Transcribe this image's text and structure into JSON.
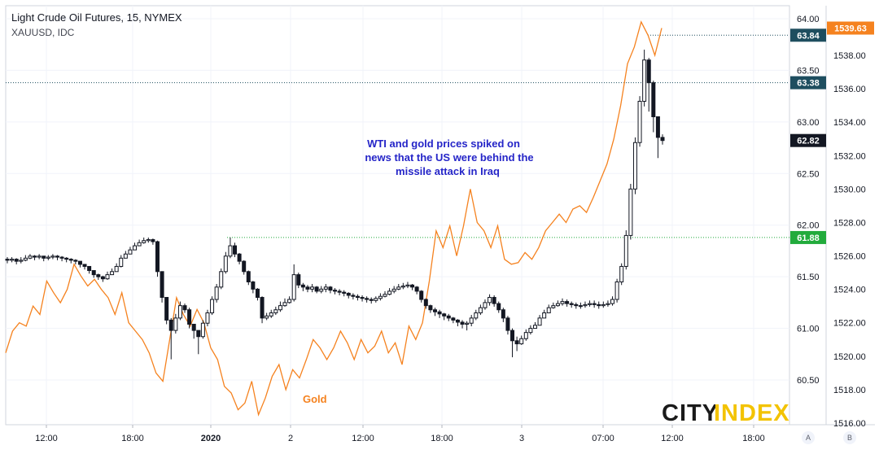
{
  "header": {
    "title": "Light Crude Oil Futures, 15, NYMEX",
    "subtitle": "XAUUSD, IDC"
  },
  "annotation": {
    "lines": [
      "WTI and gold prices spiked on",
      "news that the US were behind the",
      "missile attack in Iraq"
    ]
  },
  "logo": {
    "part1": "CITY",
    "part2": "INDEX"
  },
  "buttons": {
    "auto": "A",
    "log": "B"
  },
  "colors": {
    "oil": "#131722",
    "gold": "#f5821f",
    "note": "#2525c8",
    "level_dark": "#1e4e5f",
    "level_green": "#22ab3c",
    "price_black": "#131722"
  },
  "chart_data": {
    "type": "line",
    "title": "Light Crude Oil Futures, 15, NYMEX",
    "x_ticks": [
      "12:00",
      "18:00",
      "2020",
      "2",
      "12:00",
      "18:00",
      "3",
      "07:00",
      "12:00",
      "18:00"
    ],
    "y_left_ticks": [
      "64.00",
      "63.50",
      "63.00",
      "62.50",
      "62.00",
      "61.50",
      "61.00",
      "60.50"
    ],
    "y_left_range": [
      60.2,
      64.1
    ],
    "y_right_ticks": [
      "1538.00",
      "1536.00",
      "1534.00",
      "1532.00",
      "1530.00",
      "1528.00",
      "1526.00",
      "1524.00",
      "1522.00",
      "1520.00",
      "1518.00",
      "1516.00"
    ],
    "y_right_range": [
      1515.8,
      1540.2
    ],
    "levels": [
      {
        "label": "63.84",
        "value": 63.84,
        "style": "dark"
      },
      {
        "label": "63.38",
        "value": 63.38,
        "style": "dark"
      },
      {
        "label": "61.88",
        "value": 61.88,
        "style": "green"
      }
    ],
    "last_price_label": "62.82",
    "last_price": 62.82,
    "gold_last_label": "1539.63",
    "gold_last": 1539.63,
    "series": [
      {
        "name": "Light Crude Oil Futures",
        "kind": "candlestick",
        "close": [
          61.66,
          61.67,
          61.65,
          61.66,
          61.68,
          61.7,
          61.69,
          61.7,
          61.68,
          61.69,
          61.7,
          61.69,
          61.68,
          61.67,
          61.66,
          61.65,
          61.62,
          61.6,
          61.56,
          61.52,
          61.5,
          61.48,
          61.52,
          61.55,
          61.6,
          61.68,
          61.72,
          61.76,
          61.8,
          61.83,
          61.85,
          61.86,
          61.84,
          61.55,
          61.3,
          61.08,
          60.98,
          61.1,
          61.22,
          61.18,
          61.04,
          60.98,
          60.92,
          61.05,
          61.15,
          61.28,
          61.4,
          61.55,
          61.7,
          61.8,
          61.72,
          61.65,
          61.55,
          61.45,
          61.38,
          61.3,
          61.1,
          61.12,
          61.15,
          61.18,
          61.22,
          61.25,
          61.28,
          61.52,
          61.42,
          61.4,
          61.38,
          61.4,
          61.36,
          61.38,
          61.4,
          61.37,
          61.36,
          61.35,
          61.34,
          61.32,
          61.31,
          61.3,
          61.29,
          61.28,
          61.27,
          61.29,
          61.31,
          61.33,
          61.36,
          61.38,
          61.4,
          61.41,
          61.42,
          61.4,
          61.36,
          61.28,
          61.22,
          61.18,
          61.16,
          61.14,
          61.12,
          61.1,
          61.08,
          61.06,
          61.04,
          61.05,
          61.1,
          61.15,
          61.2,
          61.25,
          61.3,
          61.24,
          61.18,
          61.1,
          60.98,
          60.88,
          60.85,
          60.9,
          60.96,
          61.0,
          61.03,
          61.1,
          61.15,
          61.2,
          61.22,
          61.24,
          61.26,
          61.24,
          61.23,
          61.22,
          61.22,
          61.23,
          61.24,
          61.23,
          61.22,
          61.23,
          61.24,
          61.28,
          61.45,
          61.6,
          61.9,
          62.35,
          62.8,
          63.2,
          63.6,
          63.38,
          63.05,
          62.85,
          62.82
        ],
        "high": [
          61.69,
          61.69,
          61.68,
          61.69,
          61.71,
          61.72,
          61.71,
          61.72,
          61.7,
          61.71,
          61.72,
          61.71,
          61.7,
          61.69,
          61.68,
          61.67,
          61.64,
          61.62,
          61.58,
          61.55,
          61.53,
          61.51,
          61.55,
          61.58,
          61.63,
          61.71,
          61.75,
          61.79,
          61.83,
          61.86,
          61.88,
          61.88,
          61.87,
          61.85,
          61.55,
          61.3,
          61.1,
          61.14,
          61.26,
          61.24,
          61.2,
          61.04,
          60.98,
          61.08,
          61.18,
          61.31,
          61.43,
          61.58,
          61.74,
          61.88,
          61.83,
          61.73,
          61.66,
          61.56,
          61.46,
          61.39,
          61.31,
          61.15,
          61.18,
          61.21,
          61.26,
          61.29,
          61.31,
          61.62,
          61.54,
          61.44,
          61.42,
          61.43,
          61.41,
          61.41,
          61.43,
          61.41,
          61.39,
          61.38,
          61.37,
          61.35,
          61.34,
          61.33,
          61.32,
          61.31,
          61.3,
          61.31,
          61.34,
          61.36,
          61.39,
          61.41,
          61.43,
          61.44,
          61.45,
          61.43,
          61.41,
          61.37,
          61.29,
          61.23,
          61.2,
          61.18,
          61.15,
          61.14,
          61.11,
          61.09,
          61.08,
          61.07,
          61.13,
          61.18,
          61.23,
          61.28,
          61.33,
          61.32,
          61.26,
          61.2,
          61.12,
          61.0,
          60.92,
          60.93,
          60.99,
          61.03,
          61.06,
          61.13,
          61.18,
          61.23,
          61.25,
          61.27,
          61.29,
          61.28,
          61.26,
          61.25,
          61.25,
          61.26,
          61.27,
          61.27,
          61.26,
          61.26,
          61.27,
          61.31,
          61.48,
          61.63,
          61.95,
          62.4,
          62.85,
          63.25,
          63.7,
          63.62,
          63.4,
          63.05,
          62.88
        ],
        "low": [
          61.63,
          61.64,
          61.62,
          61.63,
          61.65,
          61.67,
          61.66,
          61.67,
          61.65,
          61.66,
          61.67,
          61.66,
          61.65,
          61.64,
          61.63,
          61.62,
          61.59,
          61.57,
          61.53,
          61.49,
          61.47,
          61.45,
          61.47,
          61.52,
          61.57,
          61.59,
          61.68,
          61.72,
          61.76,
          61.8,
          61.82,
          61.83,
          61.81,
          61.5,
          61.25,
          61.04,
          60.7,
          60.95,
          61.08,
          61.15,
          61.0,
          60.9,
          60.75,
          60.9,
          61.02,
          61.13,
          61.25,
          61.38,
          61.53,
          61.68,
          61.69,
          61.62,
          61.52,
          61.42,
          61.34,
          61.27,
          61.05,
          61.08,
          61.1,
          61.13,
          61.16,
          61.21,
          61.24,
          61.26,
          61.39,
          61.36,
          61.35,
          61.35,
          61.34,
          61.34,
          61.35,
          61.34,
          61.33,
          61.32,
          61.31,
          61.29,
          61.28,
          61.27,
          61.26,
          61.25,
          61.24,
          61.25,
          61.27,
          61.3,
          61.32,
          61.34,
          61.37,
          61.38,
          61.39,
          61.37,
          61.33,
          61.25,
          61.19,
          61.15,
          61.12,
          61.1,
          61.08,
          61.07,
          61.05,
          61.02,
          61.0,
          60.98,
          61.02,
          61.08,
          61.13,
          61.18,
          61.22,
          61.21,
          61.15,
          61.06,
          60.94,
          60.72,
          60.78,
          60.84,
          60.88,
          60.94,
          61.0,
          61.05,
          61.12,
          61.17,
          61.19,
          61.21,
          61.22,
          61.21,
          61.2,
          61.19,
          61.19,
          61.2,
          61.21,
          61.2,
          61.19,
          61.2,
          61.21,
          61.22,
          61.25,
          61.42,
          61.57,
          61.86,
          62.3,
          62.76,
          63.15,
          63.1,
          62.9,
          62.65,
          62.78
        ]
      },
      {
        "name": "Gold",
        "kind": "line",
        "values": [
          1520.2,
          1521.5,
          1522.0,
          1521.8,
          1523.0,
          1522.5,
          1524.5,
          1523.8,
          1523.2,
          1524.0,
          1525.5,
          1524.8,
          1524.2,
          1524.6,
          1524.0,
          1523.5,
          1522.5,
          1523.8,
          1522.0,
          1521.5,
          1521.0,
          1520.2,
          1519.0,
          1518.5,
          1521.0,
          1523.5,
          1522.5,
          1521.8,
          1522.8,
          1522.0,
          1520.5,
          1519.8,
          1518.2,
          1517.8,
          1516.8,
          1517.2,
          1518.5,
          1516.5,
          1517.5,
          1518.8,
          1519.5,
          1518.0,
          1519.2,
          1518.7,
          1519.8,
          1521.0,
          1520.5,
          1519.8,
          1520.5,
          1521.5,
          1520.8,
          1519.8,
          1521.0,
          1520.2,
          1520.6,
          1521.5,
          1520.2,
          1520.8,
          1519.5,
          1521.8,
          1521.0,
          1522.0,
          1524.5,
          1527.5,
          1526.5,
          1527.8,
          1526.0,
          1527.8,
          1530.0,
          1528.0,
          1527.5,
          1526.5,
          1527.8,
          1525.8,
          1525.5,
          1525.6,
          1526.2,
          1525.8,
          1526.5,
          1527.5,
          1528.0,
          1528.5,
          1528.0,
          1528.8,
          1529.0,
          1528.6,
          1529.5,
          1530.5,
          1531.5,
          1533.0,
          1535.0,
          1537.5,
          1538.5,
          1540.0,
          1539.2,
          1538.0,
          1539.63
        ]
      }
    ],
    "annotations": [
      "WTI and gold prices spiked on",
      "news that the US were behind the",
      "missile attack in Iraq",
      "Gold"
    ],
    "grid": true,
    "legend": "none"
  }
}
